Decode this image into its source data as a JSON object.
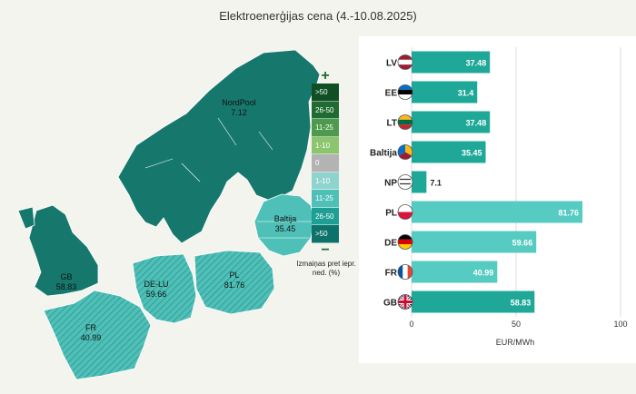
{
  "page": {
    "title": "Elektroenerģijas cena (4.-10.08.2025)"
  },
  "legend": {
    "plus": "+",
    "minus": "−",
    "items": [
      {
        "label": ">50",
        "color": "#0f4f23"
      },
      {
        "label": "26-50",
        "color": "#1f6b31"
      },
      {
        "label": "11-25",
        "color": "#4e9a4c"
      },
      {
        "label": "1-10",
        "color": "#8dc46e"
      },
      {
        "label": "0",
        "color": "#b3b3b3"
      },
      {
        "label": "1-10",
        "color": "#8fd3ce"
      },
      {
        "label": "11-25",
        "color": "#4fc0b8"
      },
      {
        "label": "26-50",
        "color": "#1f9e94"
      },
      {
        "label": ">50",
        "color": "#0d7269"
      }
    ],
    "caption": "Izmaiņas pret iepr. ned. (%)"
  },
  "map": {
    "labels": [
      {
        "name": "NordPool",
        "value": "7.12"
      },
      {
        "name": "Baltija",
        "value": "35.45"
      },
      {
        "name": "GB",
        "value": "58.83"
      },
      {
        "name": "DE-LU",
        "value": "59.66"
      },
      {
        "name": "PL",
        "value": "81.76"
      },
      {
        "name": "FR",
        "value": "40.99"
      }
    ]
  },
  "chart_data": {
    "type": "bar",
    "orientation": "horizontal",
    "title": "Elektroenerģijas cena (4.-10.08.2025)",
    "xlabel": "EUR/MWh",
    "ylabel": "",
    "xlim": [
      0,
      100
    ],
    "xticks": [
      0,
      50,
      100
    ],
    "grid": true,
    "categories": [
      "LV",
      "EE",
      "LT",
      "Baltija",
      "NP",
      "PL",
      "DE",
      "FR",
      "GB"
    ],
    "values": [
      37.48,
      31.4,
      37.48,
      35.45,
      7.12,
      81.76,
      59.66,
      40.99,
      58.83
    ],
    "value_labels": [
      "37.48",
      "31.4",
      "37.48",
      "35.45",
      "7.1",
      "81.76",
      "59.66",
      "40.99",
      "58.83"
    ],
    "bar_colors": [
      "#1fa898",
      "#1fa898",
      "#1fa898",
      "#1fa898",
      "#1fa898",
      "#56cbc2",
      "#56cbc2",
      "#56cbc2",
      "#1fa898"
    ],
    "flag_icons": [
      "latvia-flag-icon",
      "estonia-flag-icon",
      "lithuania-flag-icon",
      "baltics-flag-icon",
      "nordpool-icon",
      "poland-flag-icon",
      "germany-flag-icon",
      "france-flag-icon",
      "uk-flag-icon"
    ]
  }
}
